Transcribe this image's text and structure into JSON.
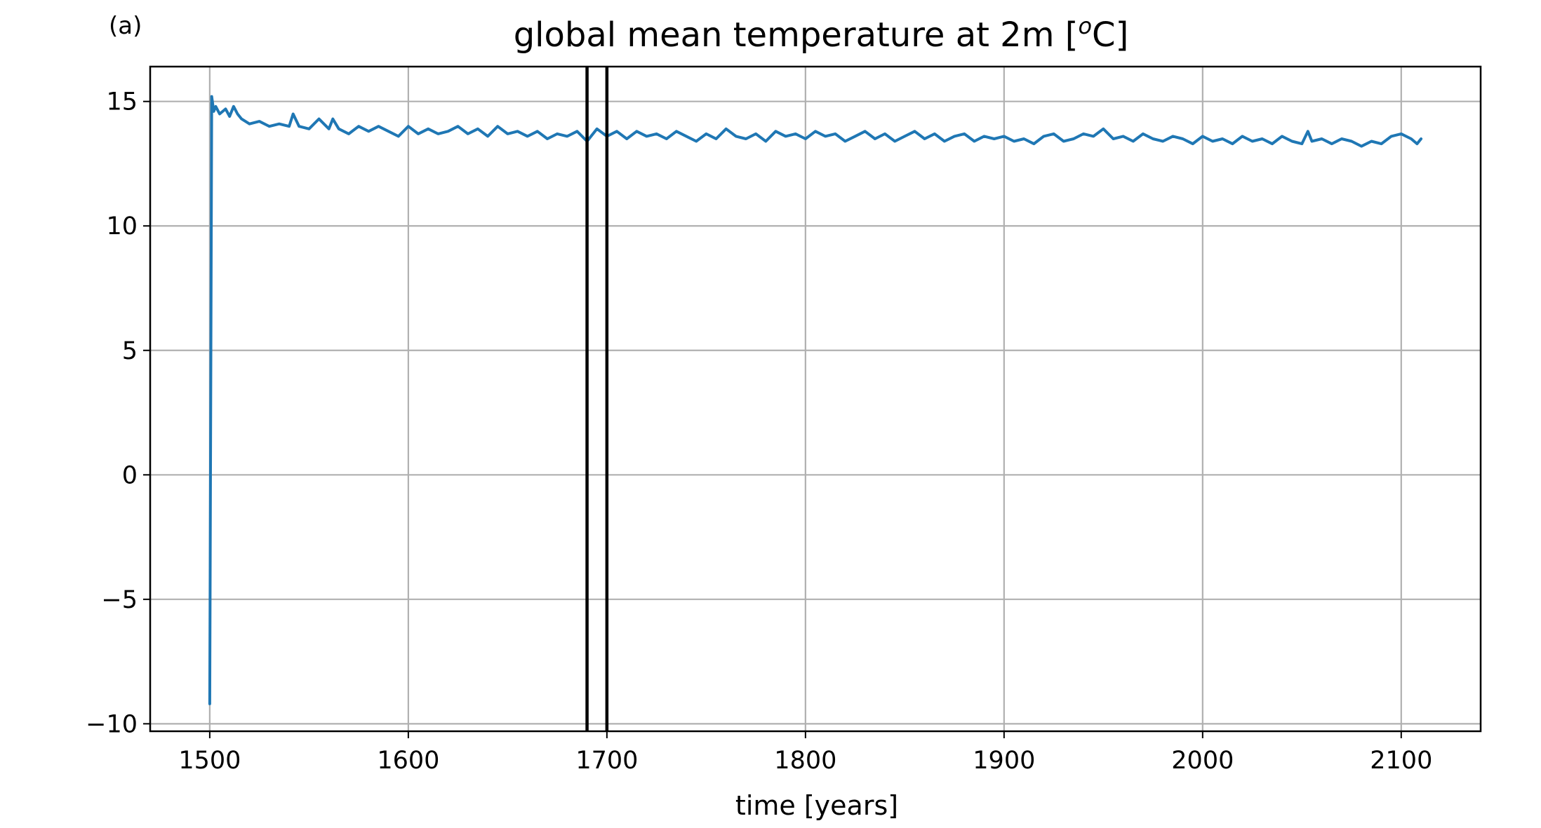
{
  "panel_label": "(a)",
  "chart_data": {
    "type": "line",
    "title_main": "global mean temperature at 2m [",
    "title_sup": "o",
    "title_end": "C]",
    "xlabel": "time [years]",
    "ylabel": "",
    "xlim": [
      1470,
      2140
    ],
    "ylim": [
      -10.3,
      16.4
    ],
    "grid": true,
    "xticks": [
      1500,
      1600,
      1700,
      1800,
      1900,
      2000,
      2100
    ],
    "xtick_labels": [
      "1500",
      "1600",
      "1700",
      "1800",
      "1900",
      "2000",
      "2100"
    ],
    "yticks": [
      15,
      10,
      5,
      0,
      -5,
      -10
    ],
    "ytick_labels": [
      "15",
      "10",
      "5",
      "0",
      "−5",
      "−10"
    ],
    "vertical_lines": [
      1690,
      1700
    ],
    "line_color": "#1f77b4",
    "vline_color": "#000000",
    "grid_color": "#b0b0b0",
    "series": [
      {
        "x": [
          1500,
          1501,
          1502,
          1503,
          1505,
          1508,
          1510,
          1512,
          1514,
          1516,
          1520,
          1525,
          1530,
          1535,
          1540,
          1542,
          1545,
          1550,
          1555,
          1560,
          1562,
          1565,
          1570,
          1575,
          1580,
          1585,
          1590,
          1595,
          1600,
          1605,
          1610,
          1615,
          1620,
          1625,
          1630,
          1635,
          1640,
          1645,
          1650,
          1655,
          1660,
          1665,
          1670,
          1675,
          1680,
          1685,
          1690,
          1695,
          1700,
          1705,
          1710,
          1715,
          1720,
          1725,
          1730,
          1735,
          1740,
          1745,
          1750,
          1755,
          1760,
          1765,
          1770,
          1775,
          1780,
          1785,
          1790,
          1795,
          1800,
          1805,
          1810,
          1815,
          1820,
          1825,
          1830,
          1835,
          1840,
          1845,
          1850,
          1855,
          1860,
          1865,
          1870,
          1875,
          1880,
          1885,
          1890,
          1895,
          1900,
          1905,
          1910,
          1915,
          1920,
          1925,
          1930,
          1935,
          1940,
          1945,
          1950,
          1955,
          1960,
          1965,
          1970,
          1975,
          1980,
          1985,
          1990,
          1995,
          2000,
          2005,
          2010,
          2015,
          2020,
          2025,
          2030,
          2035,
          2040,
          2045,
          2050,
          2053,
          2055,
          2060,
          2065,
          2070,
          2075,
          2080,
          2085,
          2090,
          2095,
          2100,
          2105,
          2108,
          2110
        ],
        "values": [
          -9.2,
          15.2,
          14.6,
          14.8,
          14.5,
          14.7,
          14.4,
          14.8,
          14.5,
          14.3,
          14.1,
          14.2,
          14.0,
          14.1,
          14.0,
          14.5,
          14.0,
          13.9,
          14.3,
          13.9,
          14.3,
          13.9,
          13.7,
          14.0,
          13.8,
          14.0,
          13.8,
          13.6,
          14.0,
          13.7,
          13.9,
          13.7,
          13.8,
          14.0,
          13.7,
          13.9,
          13.6,
          14.0,
          13.7,
          13.8,
          13.6,
          13.8,
          13.5,
          13.7,
          13.6,
          13.8,
          13.4,
          13.9,
          13.6,
          13.8,
          13.5,
          13.8,
          13.6,
          13.7,
          13.5,
          13.8,
          13.6,
          13.4,
          13.7,
          13.5,
          13.9,
          13.6,
          13.5,
          13.7,
          13.4,
          13.8,
          13.6,
          13.7,
          13.5,
          13.8,
          13.6,
          13.7,
          13.4,
          13.6,
          13.8,
          13.5,
          13.7,
          13.4,
          13.6,
          13.8,
          13.5,
          13.7,
          13.4,
          13.6,
          13.7,
          13.4,
          13.6,
          13.5,
          13.6,
          13.4,
          13.5,
          13.3,
          13.6,
          13.7,
          13.4,
          13.5,
          13.7,
          13.6,
          13.9,
          13.5,
          13.6,
          13.4,
          13.7,
          13.5,
          13.4,
          13.6,
          13.5,
          13.3,
          13.6,
          13.4,
          13.5,
          13.3,
          13.6,
          13.4,
          13.5,
          13.3,
          13.6,
          13.4,
          13.3,
          13.8,
          13.4,
          13.5,
          13.3,
          13.5,
          13.4,
          13.2,
          13.4,
          13.3,
          13.6,
          13.7,
          13.5,
          13.3,
          13.5
        ]
      }
    ]
  }
}
